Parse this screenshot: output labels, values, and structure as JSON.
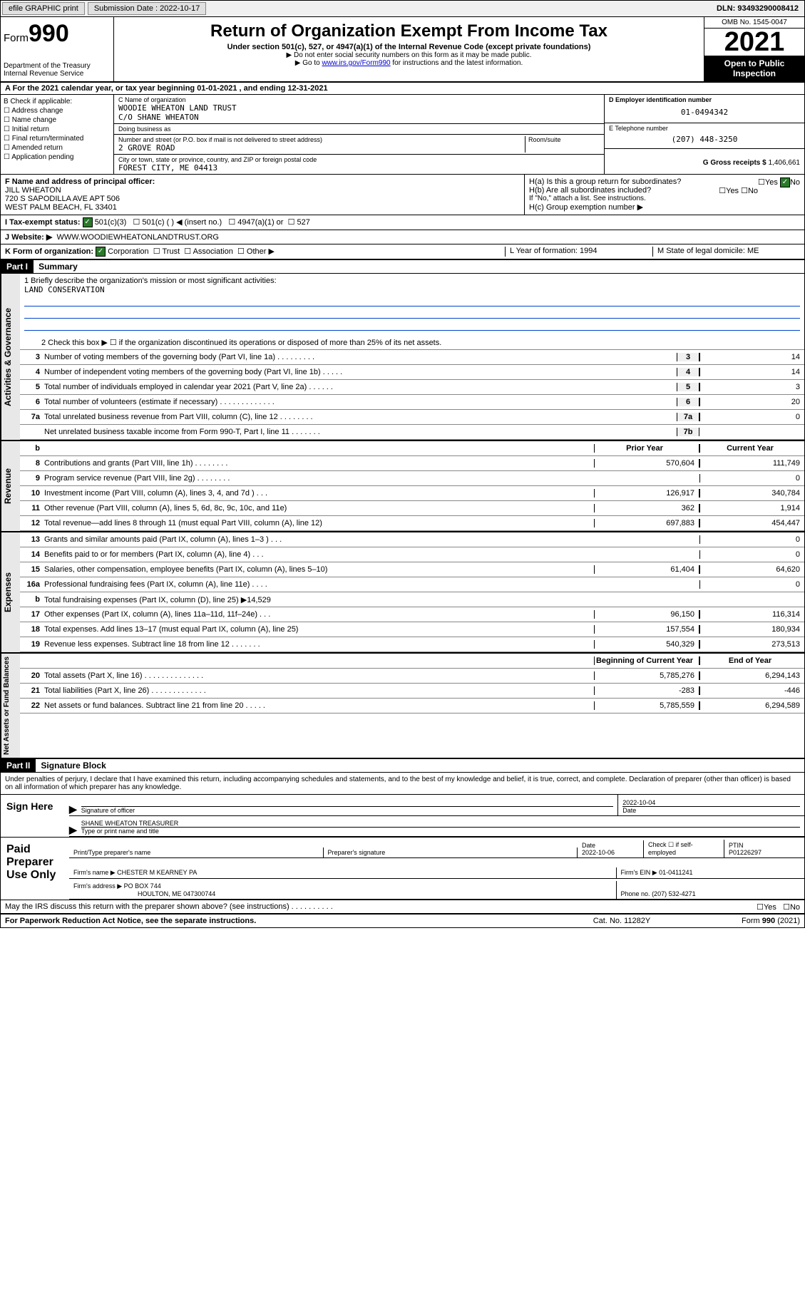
{
  "topbar": {
    "efile": "efile GRAPHIC print",
    "submission_label": "Submission Date : 2022-10-17",
    "dln": "DLN: 93493290008412"
  },
  "header": {
    "form_word": "Form",
    "form_num": "990",
    "dept": "Department of the Treasury",
    "irs": "Internal Revenue Service",
    "title": "Return of Organization Exempt From Income Tax",
    "sub": "Under section 501(c), 527, or 4947(a)(1) of the Internal Revenue Code (except private foundations)",
    "note1": "▶ Do not enter social security numbers on this form as it may be made public.",
    "note2_pre": "▶ Go to ",
    "note2_link": "www.irs.gov/Form990",
    "note2_post": " for instructions and the latest information.",
    "omb": "OMB No. 1545-0047",
    "year": "2021",
    "inspect": "Open to Public Inspection"
  },
  "row_a": "A For the 2021 calendar year, or tax year beginning 01-01-2021    , and ending 12-31-2021",
  "col_b": {
    "label": "B Check if applicable:",
    "items": [
      "Address change",
      "Name change",
      "Initial return",
      "Final return/terminated",
      "Amended return",
      "Application pending"
    ]
  },
  "col_c": {
    "name_label": "C Name of organization",
    "name": "WOODIE WHEATON LAND TRUST",
    "co": "C/O SHANE WHEATON",
    "dba_label": "Doing business as",
    "dba": "",
    "street_label": "Number and street (or P.O. box if mail is not delivered to street address)",
    "room_label": "Room/suite",
    "street": "2 GROVE ROAD",
    "city_label": "City or town, state or province, country, and ZIP or foreign postal code",
    "city": "FOREST CITY, ME  04413"
  },
  "col_de": {
    "d_label": "D Employer identification number",
    "ein": "01-0494342",
    "e_label": "E Telephone number",
    "phone": "(207) 448-3250",
    "g_label": "G Gross receipts $",
    "gross": "1,406,661"
  },
  "row_f": {
    "label": "F Name and address of principal officer:",
    "name": "JILL WHEATON",
    "addr1": "720 S SAPODILLA AVE APT 506",
    "addr2": "WEST PALM BEACH, FL  33401"
  },
  "row_h": {
    "ha": "H(a)  Is this a group return for subordinates?",
    "ha_yes": "Yes",
    "ha_no": "No",
    "hb": "H(b)  Are all subordinates included?",
    "hb_note": "If \"No,\" attach a list. See instructions.",
    "hc": "H(c)  Group exemption number ▶"
  },
  "row_i": {
    "label": "I   Tax-exempt status:",
    "opt1": "501(c)(3)",
    "opt2": "501(c) (  ) ◀ (insert no.)",
    "opt3": "4947(a)(1) or",
    "opt4": "527"
  },
  "row_j": {
    "label": "J   Website: ▶",
    "url": "WWW.WOODIEWHEATONLANDTRUST.ORG"
  },
  "row_k": {
    "label": "K Form of organization:",
    "corp": "Corporation",
    "trust": "Trust",
    "assoc": "Association",
    "other": "Other ▶",
    "l": "L Year of formation: 1994",
    "m": "M State of legal domicile: ME"
  },
  "part1": {
    "header": "Part I",
    "title": "Summary",
    "line1_label": "1   Briefly describe the organization's mission or most significant activities:",
    "mission": "LAND CONSERVATION",
    "line2": "2   Check this box ▶ ☐  if the organization discontinued its operations or disposed of more than 25% of its net assets.",
    "sections": {
      "gov": "Activities & Governance",
      "rev": "Revenue",
      "exp": "Expenses",
      "net": "Net Assets or Fund Balances"
    },
    "col_headers": {
      "prior": "Prior Year",
      "current": "Current Year",
      "begin": "Beginning of Current Year",
      "end": "End of Year"
    },
    "lines_gov": [
      {
        "n": "3",
        "d": "Number of voting members of the governing body (Part VI, line 1a)   .    .    .    .    .    .    .    .    .",
        "bn": "3",
        "v": "14"
      },
      {
        "n": "4",
        "d": "Number of independent voting members of the governing body (Part VI, line 1b)   .    .    .    .    .",
        "bn": "4",
        "v": "14"
      },
      {
        "n": "5",
        "d": "Total number of individuals employed in calendar year 2021 (Part V, line 2a)   .    .    .    .    .    .",
        "bn": "5",
        "v": "3"
      },
      {
        "n": "6",
        "d": "Total number of volunteers (estimate if necessary)   .    .    .    .    .    .    .    .    .    .    .    .    .",
        "bn": "6",
        "v": "20"
      },
      {
        "n": "7a",
        "d": "Total unrelated business revenue from Part VIII, column (C), line 12   .    .    .    .    .    .    .    .",
        "bn": "7a",
        "v": "0"
      },
      {
        "n": "",
        "d": "Net unrelated business taxable income from Form 990-T, Part I, line 11   .    .    .    .    .    .    .",
        "bn": "7b",
        "v": ""
      }
    ],
    "lines_rev": [
      {
        "n": "8",
        "d": "Contributions and grants (Part VIII, line 1h)   .    .    .    .    .    .    .    .",
        "p": "570,604",
        "c": "111,749"
      },
      {
        "n": "9",
        "d": "Program service revenue (Part VIII, line 2g)   .    .    .    .    .    .    .    .",
        "p": "",
        "c": "0"
      },
      {
        "n": "10",
        "d": "Investment income (Part VIII, column (A), lines 3, 4, and 7d )   .    .    .",
        "p": "126,917",
        "c": "340,784"
      },
      {
        "n": "11",
        "d": "Other revenue (Part VIII, column (A), lines 5, 6d, 8c, 9c, 10c, and 11e)",
        "p": "362",
        "c": "1,914"
      },
      {
        "n": "12",
        "d": "Total revenue—add lines 8 through 11 (must equal Part VIII, column (A), line 12)",
        "p": "697,883",
        "c": "454,447"
      }
    ],
    "lines_exp": [
      {
        "n": "13",
        "d": "Grants and similar amounts paid (Part IX, column (A), lines 1–3 )   .    .    .",
        "p": "",
        "c": "0"
      },
      {
        "n": "14",
        "d": "Benefits paid to or for members (Part IX, column (A), line 4)   .    .    .",
        "p": "",
        "c": "0"
      },
      {
        "n": "15",
        "d": "Salaries, other compensation, employee benefits (Part IX, column (A), lines 5–10)",
        "p": "61,404",
        "c": "64,620"
      },
      {
        "n": "16a",
        "d": "Professional fundraising fees (Part IX, column (A), line 11e)   .    .    .    .",
        "p": "",
        "c": "0"
      },
      {
        "n": "b",
        "d": "Total fundraising expenses (Part IX, column (D), line 25) ▶14,529",
        "p": "shaded",
        "c": "shaded"
      },
      {
        "n": "17",
        "d": "Other expenses (Part IX, column (A), lines 11a–11d, 11f–24e)   .    .    .",
        "p": "96,150",
        "c": "116,314"
      },
      {
        "n": "18",
        "d": "Total expenses. Add lines 13–17 (must equal Part IX, column (A), line 25)",
        "p": "157,554",
        "c": "180,934"
      },
      {
        "n": "19",
        "d": "Revenue less expenses. Subtract line 18 from line 12   .    .    .    .    .    .    .",
        "p": "540,329",
        "c": "273,513"
      }
    ],
    "lines_net": [
      {
        "n": "20",
        "d": "Total assets (Part X, line 16)   .    .    .    .    .    .    .    .    .    .    .    .    .    .",
        "p": "5,785,276",
        "c": "6,294,143"
      },
      {
        "n": "21",
        "d": "Total liabilities (Part X, line 26)   .    .    .    .    .    .    .    .    .    .    .    .    .",
        "p": "-283",
        "c": "-446"
      },
      {
        "n": "22",
        "d": "Net assets or fund balances. Subtract line 21 from line 20   .    .    .    .    .",
        "p": "5,785,559",
        "c": "6,294,589"
      }
    ]
  },
  "part2": {
    "header": "Part II",
    "title": "Signature Block",
    "declare": "Under penalties of perjury, I declare that I have examined this return, including accompanying schedules and statements, and to the best of my knowledge and belief, it is true, correct, and complete. Declaration of preparer (other than officer) is based on all information of which preparer has any knowledge.",
    "sign_here": "Sign Here",
    "sig_officer": "Signature of officer",
    "sig_date": "2022-10-04",
    "date_label": "Date",
    "officer_name": "SHANE WHEATON  TREASURER",
    "name_title_label": "Type or print name and title",
    "paid": "Paid Preparer Use Only",
    "prep_name_label": "Print/Type preparer's name",
    "prep_sig_label": "Preparer's signature",
    "prep_date_label": "Date",
    "prep_date": "2022-10-06",
    "self_emp": "Check ☐ if self-employed",
    "ptin_label": "PTIN",
    "ptin": "P01226297",
    "firm_name_label": "Firm's name    ▶",
    "firm_name": "CHESTER M KEARNEY PA",
    "firm_ein_label": "Firm's EIN ▶",
    "firm_ein": "01-0411241",
    "firm_addr_label": "Firm's address ▶",
    "firm_addr1": "PO BOX 744",
    "firm_addr2": "HOULTON, ME  047300744",
    "firm_phone_label": "Phone no.",
    "firm_phone": "(207) 532-4271",
    "discuss": "May the IRS discuss this return with the preparer shown above? (see instructions)   .    .    .    .    .    .    .    .    .    .",
    "discuss_yes": "Yes",
    "discuss_no": "No"
  },
  "footer": {
    "left": "For Paperwork Reduction Act Notice, see the separate instructions.",
    "mid": "Cat. No. 11282Y",
    "right": "Form 990 (2021)"
  }
}
